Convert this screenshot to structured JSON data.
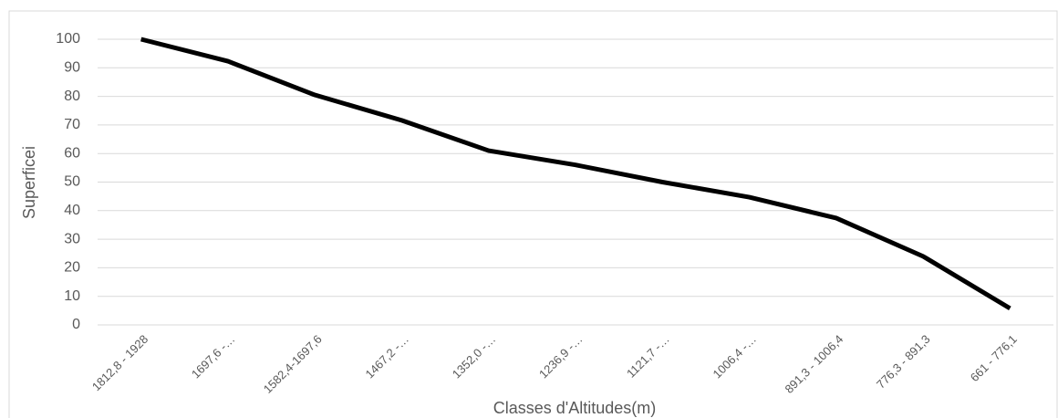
{
  "chart_data": {
    "type": "line",
    "xlabel": "Classes d'Altitudes(m)",
    "ylabel": "Superficei",
    "categories": [
      "1812,8 - 1928",
      "1697,6 -…",
      "1582,4-1697,6",
      "1467,2 -…",
      "1352,0 -…",
      "1236,9 -…",
      "1121,7 -…",
      "1006,4 -…",
      "891,3 - 1006,4",
      "776,3 - 891,3",
      "661 - 776,1"
    ],
    "series": [
      {
        "name": "Superficei",
        "color": "#000000",
        "values": [
          100,
          92.3,
          80.5,
          71.6,
          61,
          56,
          50,
          44.7,
          37.4,
          24,
          5.8
        ]
      }
    ],
    "ylim": [
      0,
      100
    ],
    "yticks": [
      0,
      10,
      20,
      30,
      40,
      50,
      60,
      70,
      80,
      90,
      100
    ],
    "grid": true
  }
}
